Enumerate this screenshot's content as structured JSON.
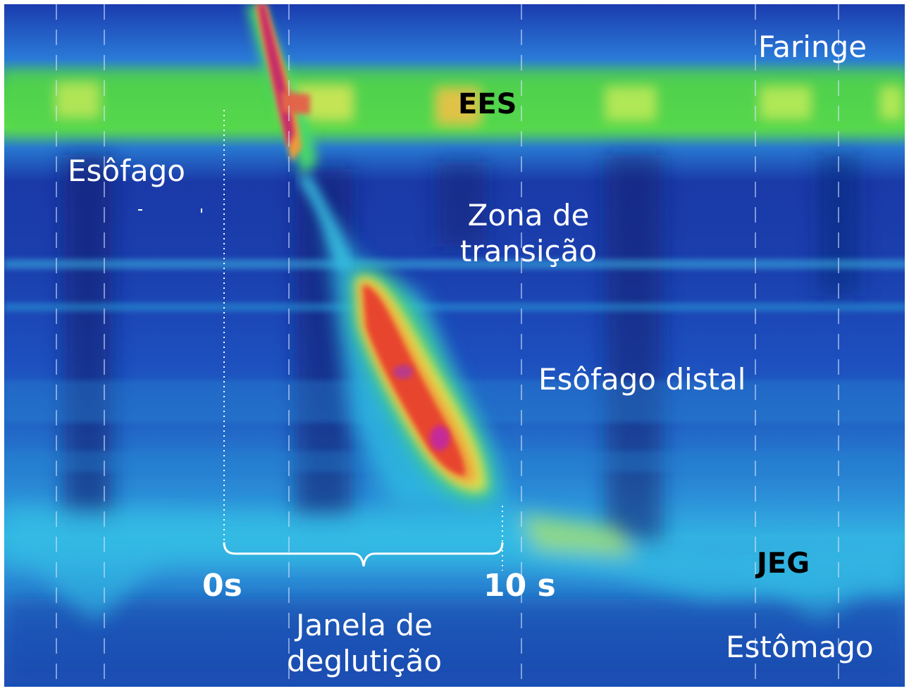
{
  "labels": {
    "faringe": "Faringe",
    "ees": "EES",
    "esofago": "Esôfago",
    "zona_line1": "Zona de",
    "zona_line2": "transição",
    "esofago_distal": "Esôfago distal",
    "jeg": "JEG",
    "estomago": "Estômago",
    "time_start": "0s",
    "time_end": "10 s",
    "janela_line1": "Janela de",
    "janela_line2": "deglutição"
  },
  "colors": {
    "background_blue": "#1a3aa8",
    "deep_blue": "#0f2478",
    "cyan": "#1ea8e6",
    "green": "#5ee04a",
    "yellow": "#f2e84a",
    "orange": "#f09a3a",
    "red": "#e8452e",
    "magenta": "#c42a7a",
    "label_white": "#ffffff",
    "label_black": "#000000"
  }
}
